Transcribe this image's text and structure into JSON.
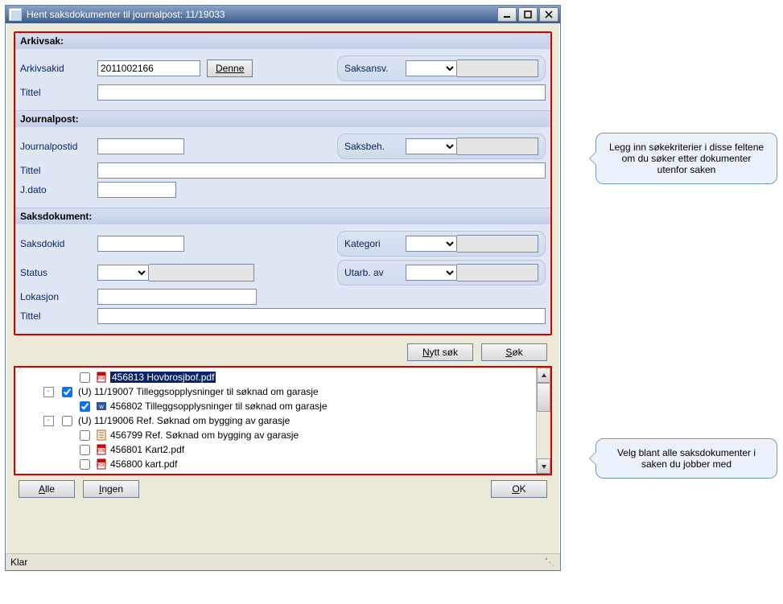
{
  "window": {
    "title": "Hent saksdokumenter til journalpost: 11/19033",
    "status": "Klar"
  },
  "arkivsak": {
    "header": "Arkivsak:",
    "arkivsakid_label": "Arkivsakid",
    "arkivsakid_value": "2011002166",
    "denne_label": "Denne",
    "saksansv_label": "Saksansv.",
    "tittel_label": "Tittel",
    "tittel_value": ""
  },
  "journalpost": {
    "header": "Journalpost:",
    "journalpostid_label": "Journalpostid",
    "journalpostid_value": "",
    "saksbeh_label": "Saksbeh.",
    "tittel_label": "Tittel",
    "tittel_value": "",
    "jdato_label": "J.dato",
    "jdato_value": ""
  },
  "saksdokument": {
    "header": "Saksdokument:",
    "saksdokid_label": "Saksdokid",
    "saksdokid_value": "",
    "kategori_label": "Kategori",
    "status_label": "Status",
    "utarb_label": "Utarb. av",
    "lokasjon_label": "Lokasjon",
    "lokasjon_value": "",
    "tittel_label": "Tittel",
    "tittel_value": ""
  },
  "buttons": {
    "nytt_sok": "Nytt søk",
    "sok": "Søk",
    "alle": "Alle",
    "ingen": "Ingen",
    "ok": "OK"
  },
  "tree": {
    "items": [
      {
        "indent": 2,
        "checked": false,
        "icon": "pdf",
        "label": "456813 Hovbrosjbof.pdf",
        "selected": true
      },
      {
        "indent": 1,
        "expander": "-",
        "checked": true,
        "icon": "none",
        "label": "(U) 11/19007 Tilleggsopplysninger til søknad om garasje"
      },
      {
        "indent": 2,
        "checked": true,
        "icon": "docx",
        "label": "456802 Tilleggsopplysninger til søknad om garasje"
      },
      {
        "indent": 1,
        "expander": "-",
        "checked": false,
        "icon": "none",
        "label": "(U) 11/19006 Ref. Søknad om bygging av garasje"
      },
      {
        "indent": 2,
        "checked": false,
        "icon": "doc",
        "label": "456799 Ref. Søknad om bygging av garasje"
      },
      {
        "indent": 2,
        "checked": false,
        "icon": "pdf",
        "label": "456801 Kart2.pdf"
      },
      {
        "indent": 2,
        "checked": false,
        "icon": "pdf",
        "label": "456800 kart.pdf"
      }
    ]
  },
  "callouts": {
    "top": "Legg inn søkekriterier i disse feltene om du søker etter dokumenter utenfor saken",
    "bottom": "Velg blant alle saksdokumenter i saken du jobber med"
  },
  "colors": {
    "highlight_border": "#d40000",
    "label_color": "#0a246a",
    "panel_bg": "#e0e7f4",
    "callout_bg": "#eaf1fb",
    "callout_border": "#6b8ec4"
  }
}
